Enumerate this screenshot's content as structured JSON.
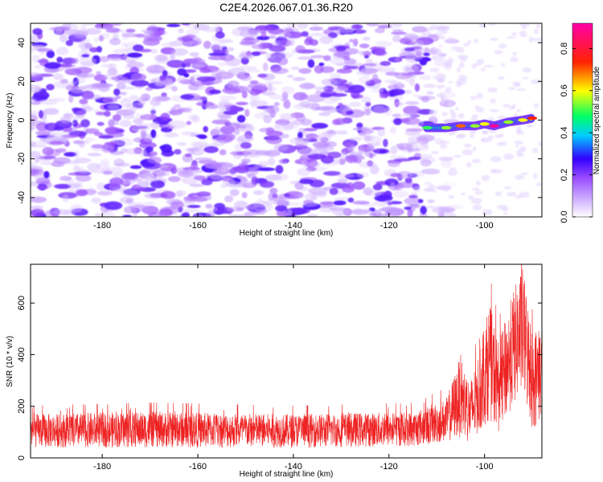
{
  "figure_title": "C2E4.2026.067.01.36.R20",
  "chart_data": [
    {
      "type": "heatmap",
      "title": "C2E4.2026.067.01.36.R20",
      "xlabel": "Height of straight line (km)",
      "ylabel": "Frequency (Hz)",
      "xlim": [
        -195,
        -88
      ],
      "ylim": [
        -50,
        50
      ],
      "xticks": [
        -180,
        -160,
        -140,
        -120,
        -100
      ],
      "yticks": [
        -40,
        -20,
        0,
        20,
        40
      ],
      "xtick_labels": [
        "-180",
        "-160",
        "-140",
        "-120",
        "-100"
      ],
      "ytick_labels": [
        "-40",
        "-20",
        "0",
        "20",
        "40"
      ],
      "colorbar": {
        "label": "Normalized spectral amplitude",
        "range": [
          0,
          0.92
        ],
        "ticks": [
          0,
          0.2,
          0.4,
          0.6,
          0.8
        ],
        "tick_labels": [
          "0.0",
          "0.2",
          "0.4",
          "0.6",
          "0.8"
        ],
        "colors": [
          "#ffffff",
          "#9a4dff",
          "#0000ff",
          "#00ffff",
          "#00ff00",
          "#ffff00",
          "#ff0000",
          "#ff00aa"
        ]
      },
      "noise_region": {
        "x_range": [
          -195,
          -112
        ],
        "typical_amplitude": [
          0.05,
          0.2
        ]
      },
      "signal_track": [
        {
          "x": -112,
          "y": -4,
          "value": 0.5
        },
        {
          "x": -108,
          "y": -4,
          "value": 0.55
        },
        {
          "x": -105,
          "y": -3,
          "value": 0.7
        },
        {
          "x": -102,
          "y": -3,
          "value": 0.55
        },
        {
          "x": -100,
          "y": -2,
          "value": 0.6
        },
        {
          "x": -98,
          "y": -3,
          "value": 0.9
        },
        {
          "x": -95,
          "y": -1,
          "value": 0.55
        },
        {
          "x": -92,
          "y": 0,
          "value": 0.6
        },
        {
          "x": -90,
          "y": 1,
          "value": 0.75
        }
      ]
    },
    {
      "type": "line",
      "xlabel": "Height of straight line (km)",
      "ylabel": "SNR (10 * v/v)",
      "xlim": [
        -195,
        -88
      ],
      "ylim": [
        0,
        750
      ],
      "xticks": [
        -180,
        -160,
        -140,
        -120,
        -100
      ],
      "yticks": [
        0,
        200,
        400,
        600
      ],
      "xtick_labels": [
        "-180",
        "-160",
        "-140",
        "-120",
        "-100"
      ],
      "ytick_labels": [
        "0",
        "200",
        "400",
        "600"
      ],
      "series": [
        {
          "name": "SNR",
          "color": "#ee2222",
          "envelope": [
            {
              "x": -195,
              "low": 40,
              "high": 170
            },
            {
              "x": -170,
              "low": 40,
              "high": 180
            },
            {
              "x": -140,
              "low": 40,
              "high": 170
            },
            {
              "x": -115,
              "low": 45,
              "high": 180
            },
            {
              "x": -108,
              "low": 60,
              "high": 230
            },
            {
              "x": -105,
              "low": 80,
              "high": 400
            },
            {
              "x": -103,
              "low": 50,
              "high": 300
            },
            {
              "x": -101,
              "low": 100,
              "high": 420
            },
            {
              "x": -99,
              "low": 150,
              "high": 600
            },
            {
              "x": -97,
              "low": 100,
              "high": 450
            },
            {
              "x": -94,
              "low": 200,
              "high": 650
            },
            {
              "x": -92,
              "low": 250,
              "high": 740
            },
            {
              "x": -90,
              "low": 100,
              "high": 500
            },
            {
              "x": -88,
              "low": 150,
              "high": 520
            }
          ]
        }
      ]
    }
  ]
}
